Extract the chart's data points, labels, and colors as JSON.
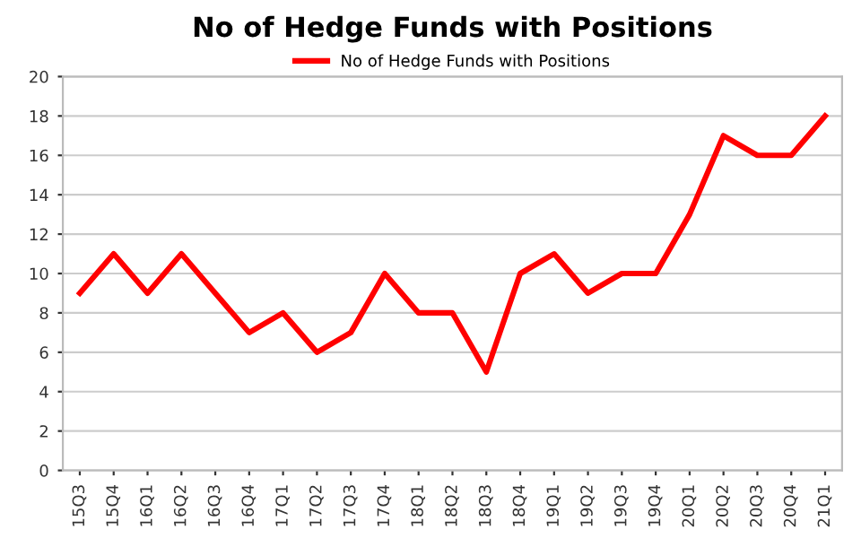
{
  "chart_data": {
    "type": "line",
    "title": "No of Hedge Funds with Positions",
    "categories": [
      "15Q3",
      "15Q4",
      "16Q1",
      "16Q2",
      "16Q3",
      "16Q4",
      "17Q1",
      "17Q2",
      "17Q3",
      "17Q4",
      "18Q1",
      "18Q2",
      "18Q3",
      "18Q4",
      "19Q1",
      "19Q2",
      "19Q3",
      "19Q4",
      "20Q1",
      "20Q2",
      "20Q3",
      "20Q4",
      "21Q1"
    ],
    "series": [
      {
        "name": "No of Hedge Funds with Positions",
        "color": "#ff0000",
        "values": [
          9,
          11,
          9,
          11,
          9,
          7,
          8,
          6,
          7,
          10,
          8,
          8,
          5,
          10,
          11,
          9,
          10,
          10,
          13,
          17,
          16,
          16,
          18
        ]
      }
    ],
    "ylim": [
      0,
      20
    ],
    "yticks": [
      0,
      2,
      4,
      6,
      8,
      10,
      12,
      14,
      16,
      18,
      20
    ],
    "grid": "y",
    "legend": "top",
    "marker": "none",
    "line_style": "solid"
  }
}
